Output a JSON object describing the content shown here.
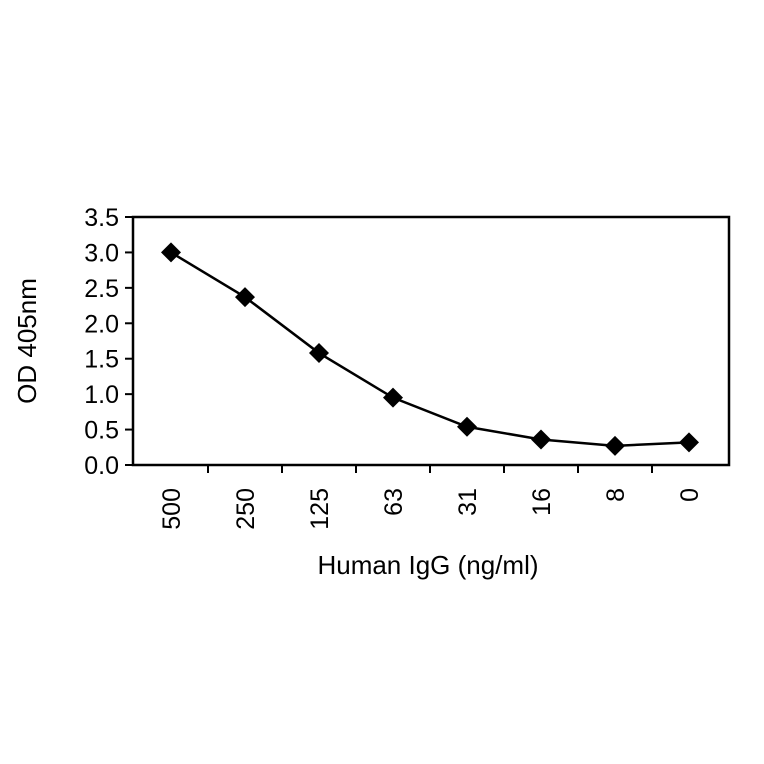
{
  "chart_data": {
    "type": "line",
    "title": "",
    "xlabel": "Human IgG (ng/ml)",
    "ylabel": "OD 405nm",
    "categories": [
      "500",
      "250",
      "125",
      "63",
      "31",
      "16",
      "8",
      "0"
    ],
    "series": [
      {
        "values": [
          3.0,
          2.37,
          1.58,
          0.95,
          0.54,
          0.36,
          0.27,
          0.32
        ],
        "marker": "diamond",
        "color": "#000000"
      }
    ],
    "ylim": [
      0,
      3.5
    ],
    "yticks": [
      "0.0",
      "0.5",
      "1.0",
      "1.5",
      "2.0",
      "2.5",
      "3.0",
      "3.5"
    ],
    "grid": false,
    "legend": "none"
  }
}
